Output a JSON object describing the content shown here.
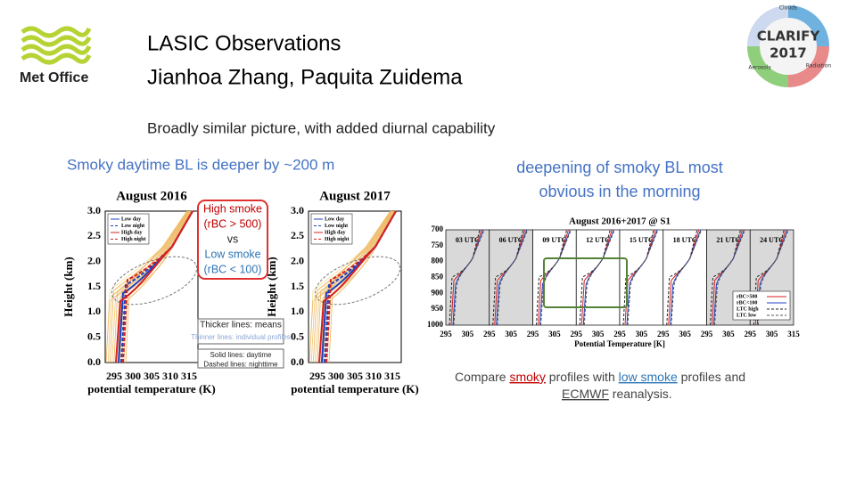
{
  "header": {
    "logo": "Met Office",
    "title": "LASIC Observations",
    "authors": "Jianhoa Zhang, Paquita Zuidema",
    "badge": {
      "name": "CLARIFY",
      "year": "2017",
      "labels": [
        "Clouds",
        "Aerosols",
        "Radiation"
      ]
    }
  },
  "subtitle": "Broadly similar picture, with added diurnal capability",
  "left": {
    "heading": "Smoky daytime BL is deeper by ~200 m",
    "panels": [
      {
        "title": "August 2016",
        "ylabel": "Height (km)",
        "xlabel": "potential temperature (K)",
        "yticks": [
          "0.0",
          "0.5",
          "1.0",
          "1.5",
          "2.0",
          "2.5",
          "3.0"
        ],
        "xticks": [
          "295",
          "300",
          "305",
          "310",
          "315"
        ],
        "legend": [
          "Low day",
          "Low night",
          "High day",
          "High night"
        ]
      },
      {
        "title": "August 2017",
        "ylabel": "Height (km)",
        "xlabel": "potential temperature (K)",
        "yticks": [
          "0.0",
          "0.5",
          "1.0",
          "1.5",
          "2.0",
          "2.5",
          "3.0"
        ],
        "xticks": [
          "295",
          "300",
          "305",
          "310",
          "315"
        ],
        "legend": [
          "Low day",
          "Low night",
          "High day",
          "High night"
        ]
      }
    ],
    "callout": [
      "High smoke",
      "(rBC > 500)",
      "vs",
      "Low smoke",
      "(rBC < 100)"
    ],
    "notes": [
      [
        "Thicker lines: means",
        "Thinner lines: individual profiles"
      ],
      [
        "Solid lines: daytime",
        "Dashed lines: nighttime"
      ]
    ]
  },
  "right": {
    "heading": [
      "deepening of smoky BL most",
      "obvious in the morning"
    ],
    "chart": {
      "title": "August 2016+2017 @ S1",
      "xlabel": "Potential Temperature [K]",
      "yticks": [
        "700",
        "750",
        "800",
        "850",
        "900",
        "950",
        "1000"
      ],
      "panels": [
        "03 UTC",
        "06 UTC",
        "09 UTC",
        "12 UTC",
        "15 UTC",
        "18 UTC",
        "21 UTC",
        "24 UTC"
      ],
      "xticks": [
        "295",
        "305",
        "295",
        "305",
        "295",
        "305",
        "295",
        "305",
        "295",
        "305",
        "295",
        "305",
        "295",
        "305",
        "295",
        "305",
        "315"
      ],
      "legend": [
        "rBC>500",
        "rBC<100",
        "LTC high",
        "LTC low"
      ]
    },
    "caption": {
      "line1": [
        "Compare ",
        "smoky",
        " profiles with ",
        "low smoke",
        " profiles and"
      ],
      "line2": [
        "ECMWF",
        " reanalysis."
      ]
    }
  }
}
